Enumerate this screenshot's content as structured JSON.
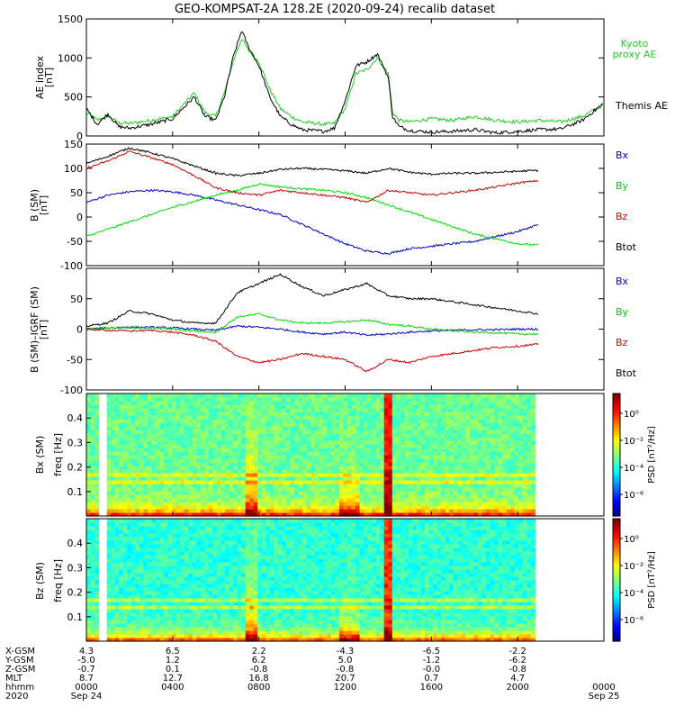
{
  "title": "GEO-KOMPSAT-2A 128.2E (2020-09-24) recalib dataset",
  "colors": {
    "bx": "#0000cc",
    "by": "#00dd00",
    "bz": "#cc0000",
    "btot": "#000000"
  },
  "chart_data": [
    {
      "type": "line",
      "ylabel": "AE index [nT]",
      "ylim": [
        0,
        1500
      ],
      "yticks": [
        "0",
        "500",
        "1000",
        "1500"
      ],
      "xlim": [
        0,
        24
      ],
      "series": [
        {
          "name": "Kyoto proxy AE",
          "color": "#22cc22",
          "x": [
            0,
            0.5,
            1,
            1.5,
            2,
            3,
            4,
            5,
            5.5,
            6,
            6.4,
            6.8,
            7.2,
            7.5,
            8,
            8.5,
            9,
            9.5,
            10,
            11,
            11.5,
            12,
            12.5,
            13,
            13.5,
            14,
            14.2,
            14.5,
            15,
            16,
            17,
            18,
            19,
            20,
            21,
            22,
            23,
            24
          ],
          "values": [
            300,
            200,
            260,
            170,
            160,
            200,
            250,
            550,
            300,
            250,
            550,
            950,
            1250,
            1100,
            950,
            600,
            350,
            250,
            180,
            150,
            160,
            350,
            800,
            850,
            1000,
            800,
            300,
            200,
            180,
            220,
            200,
            250,
            200,
            180,
            200,
            180,
            250,
            400
          ]
        },
        {
          "name": "Themis AE",
          "color": "#000000",
          "x": [
            0,
            0.5,
            1,
            1.5,
            2,
            3,
            4,
            5,
            5.5,
            6,
            6.4,
            6.8,
            7.2,
            7.5,
            8,
            8.5,
            9,
            9.5,
            10,
            11,
            11.5,
            12,
            12.5,
            13,
            13.5,
            14,
            14.2,
            14.5,
            15,
            16,
            17,
            18,
            19,
            20,
            21,
            22,
            23,
            24
          ],
          "values": [
            350,
            150,
            280,
            120,
            100,
            150,
            220,
            500,
            250,
            200,
            500,
            1000,
            1350,
            1150,
            900,
            500,
            250,
            150,
            80,
            60,
            100,
            450,
            900,
            950,
            1050,
            750,
            250,
            120,
            70,
            50,
            60,
            80,
            40,
            60,
            80,
            90,
            200,
            420
          ]
        }
      ]
    },
    {
      "type": "line",
      "ylabel": "B (SM) [nT]",
      "ylim": [
        -100,
        150
      ],
      "yticks": [
        "-100",
        "-50",
        "0",
        "50",
        "100",
        "150"
      ],
      "xlim": [
        0,
        24
      ],
      "series": [
        {
          "name": "Bx",
          "color": "#0000cc",
          "x": [
            0,
            1,
            2,
            3,
            4,
            5,
            6,
            7,
            8,
            9,
            10,
            11,
            12,
            13,
            14,
            15,
            16,
            17,
            18,
            19,
            20,
            21
          ],
          "values": [
            30,
            45,
            52,
            55,
            52,
            45,
            35,
            25,
            15,
            5,
            -15,
            -35,
            -55,
            -70,
            -75,
            -65,
            -60,
            -55,
            -50,
            -40,
            -30,
            -15
          ]
        },
        {
          "name": "By",
          "color": "#00dd00",
          "x": [
            0,
            1,
            2,
            3,
            4,
            5,
            6,
            7,
            8,
            9,
            10,
            11,
            12,
            13,
            14,
            15,
            16,
            17,
            18,
            19,
            20,
            21
          ],
          "values": [
            -40,
            -25,
            -10,
            5,
            20,
            32,
            45,
            55,
            68,
            62,
            58,
            55,
            50,
            40,
            25,
            10,
            -5,
            -20,
            -35,
            -45,
            -55,
            -58
          ]
        },
        {
          "name": "Bz",
          "color": "#cc0000",
          "x": [
            0,
            1,
            2,
            3,
            4,
            5,
            6,
            7,
            8,
            9,
            10,
            11,
            12,
            13,
            14,
            15,
            16,
            17,
            18,
            19,
            20,
            21
          ],
          "values": [
            100,
            115,
            135,
            122,
            108,
            85,
            60,
            50,
            45,
            55,
            50,
            45,
            40,
            30,
            55,
            50,
            45,
            50,
            55,
            62,
            70,
            75
          ]
        },
        {
          "name": "Btot",
          "color": "#000000",
          "x": [
            0,
            1,
            2,
            3,
            4,
            5,
            6,
            7,
            8,
            9,
            10,
            11,
            12,
            13,
            14,
            15,
            16,
            17,
            18,
            19,
            20,
            21
          ],
          "values": [
            110,
            125,
            142,
            132,
            120,
            105,
            90,
            85,
            90,
            98,
            100,
            98,
            95,
            90,
            100,
            92,
            88,
            90,
            90,
            92,
            94,
            96
          ]
        }
      ]
    },
    {
      "type": "line",
      "ylabel": "B (SM)-IGRF (SM) [nT]",
      "ylim": [
        -100,
        100
      ],
      "yticks": [
        "-100",
        "-50",
        "0",
        "50"
      ],
      "xlim": [
        0,
        24
      ],
      "series": [
        {
          "name": "Bx",
          "color": "#0000cc",
          "x": [
            0,
            1,
            2,
            3,
            4,
            5,
            6,
            7,
            8,
            9,
            10,
            11,
            12,
            13,
            14,
            15,
            16,
            17,
            18,
            19,
            20,
            21
          ],
          "values": [
            0,
            2,
            3,
            3,
            2,
            0,
            -2,
            5,
            3,
            0,
            -5,
            -8,
            -5,
            -10,
            -8,
            -5,
            -3,
            -2,
            -1,
            -1,
            0,
            0
          ]
        },
        {
          "name": "By",
          "color": "#00dd00",
          "x": [
            0,
            1,
            2,
            3,
            4,
            5,
            6,
            7,
            8,
            9,
            10,
            11,
            12,
            13,
            14,
            15,
            16,
            17,
            18,
            19,
            20,
            21
          ],
          "values": [
            0,
            2,
            3,
            2,
            0,
            -3,
            -5,
            20,
            25,
            15,
            10,
            10,
            12,
            15,
            8,
            5,
            0,
            -3,
            -5,
            -6,
            -8,
            -8
          ]
        },
        {
          "name": "Bz",
          "color": "#cc0000",
          "x": [
            0,
            1,
            2,
            3,
            4,
            5,
            6,
            7,
            8,
            9,
            10,
            11,
            12,
            13,
            14,
            15,
            16,
            17,
            18,
            19,
            20,
            21
          ],
          "values": [
            0,
            -2,
            -3,
            -2,
            -5,
            -10,
            -20,
            -45,
            -55,
            -50,
            -40,
            -45,
            -50,
            -70,
            -50,
            -55,
            -45,
            -40,
            -35,
            -30,
            -28,
            -25
          ]
        },
        {
          "name": "Btot",
          "color": "#000000",
          "x": [
            0,
            1,
            2,
            3,
            4,
            5,
            6,
            7,
            8,
            9,
            10,
            11,
            12,
            13,
            14,
            15,
            16,
            17,
            18,
            19,
            20,
            21
          ],
          "values": [
            5,
            10,
            30,
            25,
            15,
            10,
            10,
            60,
            75,
            90,
            70,
            55,
            65,
            75,
            55,
            50,
            50,
            45,
            40,
            35,
            30,
            25
          ]
        }
      ]
    },
    {
      "type": "heatmap",
      "ylabel": "Bx (SM) freq [Hz]",
      "ylim": [
        0,
        0.5
      ],
      "yticks": [
        "0.1",
        "0.2",
        "0.3",
        "0.4"
      ],
      "colorbar_label": "PSD [nT²/Hz]",
      "colorbar_ticks": [
        "10⁰",
        "10⁻²",
        "10⁻⁴",
        "10⁻⁶"
      ]
    },
    {
      "type": "heatmap",
      "ylabel": "Bz (SM) freq [Hz]",
      "ylim": [
        0,
        0.5
      ],
      "yticks": [
        "0.1",
        "0.2",
        "0.3",
        "0.4"
      ],
      "colorbar_label": "PSD [nT²/Hz]",
      "colorbar_ticks": [
        "10⁰",
        "10⁻²",
        "10⁻⁴",
        "10⁻⁶"
      ]
    }
  ],
  "orbit_table": {
    "row_labels": [
      "X-GSM",
      "Y-GSM",
      "Z-GSM",
      "MLT",
      "hhmm",
      "2020"
    ],
    "columns": [
      {
        "hour": 0,
        "vals": [
          "4.3",
          "-5.0",
          "-0.7",
          "8.7",
          "0000",
          "Sep 24"
        ]
      },
      {
        "hour": 4,
        "vals": [
          "6.5",
          "1.2",
          "0.1",
          "12.7",
          "0400",
          ""
        ]
      },
      {
        "hour": 8,
        "vals": [
          "2.2",
          "6.2",
          "-0.8",
          "16.8",
          "0800",
          ""
        ]
      },
      {
        "hour": 12,
        "vals": [
          "-4.3",
          "5.0",
          "-0.8",
          "20.7",
          "1200",
          ""
        ]
      },
      {
        "hour": 16,
        "vals": [
          "-6.5",
          "-1.2",
          "-0.0",
          "0.7",
          "1600",
          ""
        ]
      },
      {
        "hour": 20,
        "vals": [
          "-2.2",
          "-6.2",
          "-0.8",
          "4.7",
          "2000",
          ""
        ]
      },
      {
        "hour": 24,
        "vals": [
          "",
          "",
          "",
          "",
          "0000",
          "Sep 25"
        ]
      }
    ]
  }
}
